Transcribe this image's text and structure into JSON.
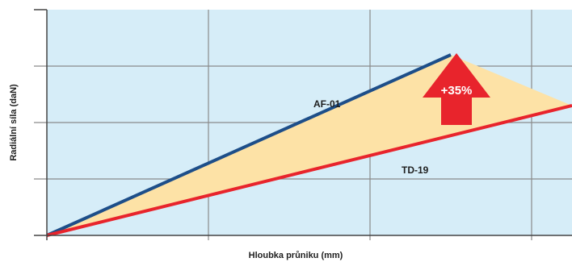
{
  "chart_data": {
    "type": "line",
    "xlabel": "Hloubka průniku (mm)",
    "ylabel": "Radiální síla (daN)",
    "xlim": [
      0,
      6.5
    ],
    "ylim": [
      0,
      4
    ],
    "grid": true,
    "series": [
      {
        "name": "AF-01",
        "color": "#1d4e89",
        "x": [
          0,
          5.0
        ],
        "y": [
          0,
          3.2
        ]
      },
      {
        "name": "TD-19",
        "color": "#e8242c",
        "x": [
          0,
          6.5
        ],
        "y": [
          0,
          2.3
        ]
      }
    ],
    "annotation": {
      "text": "+35%",
      "color": "#e8242c"
    },
    "colors": {
      "background": "#d6edf8",
      "fill_between": "#fde2a6",
      "grid": "#8a8a8a",
      "axis": "#444444"
    }
  }
}
